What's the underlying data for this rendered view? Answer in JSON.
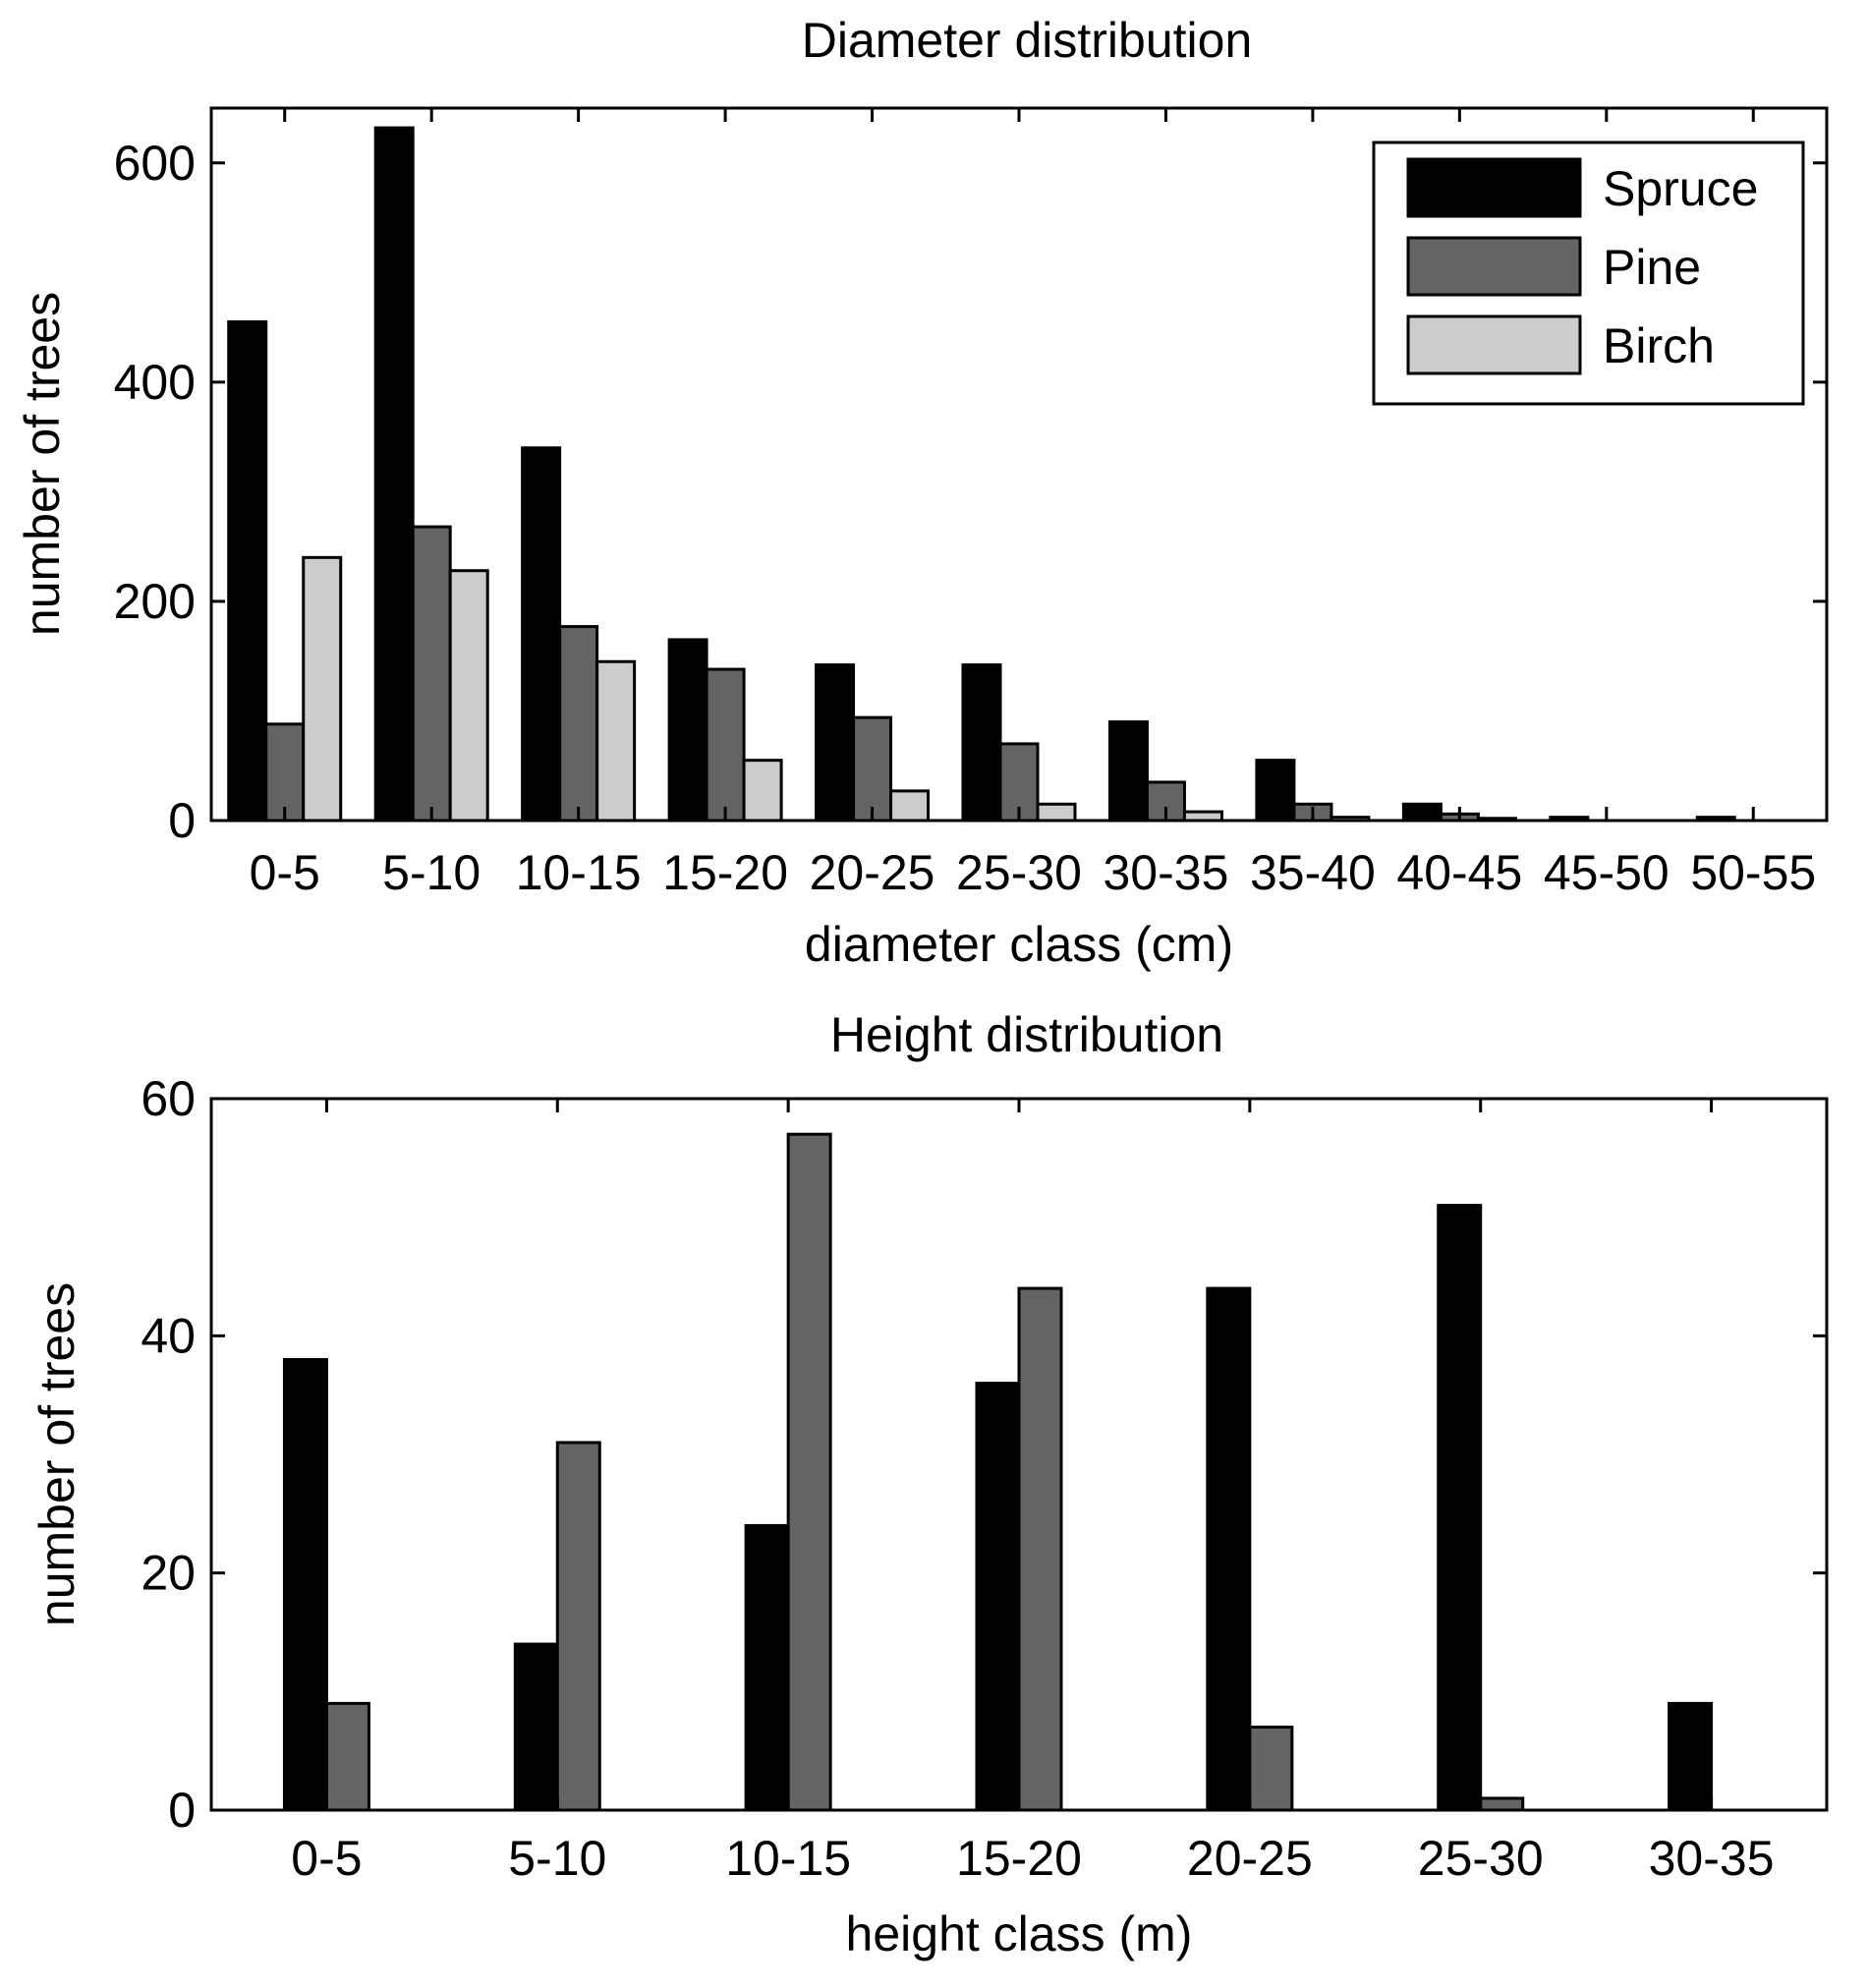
{
  "chart_data": [
    {
      "type": "bar",
      "title": "Diameter distribution",
      "xlabel": "diameter class (cm)",
      "ylabel": "number of trees",
      "categories": [
        "0-5",
        "5-10",
        "10-15",
        "15-20",
        "20-25",
        "25-30",
        "30-35",
        "35-40",
        "40-45",
        "45-50",
        "50-55"
      ],
      "series": [
        {
          "name": "Spruce",
          "color": "#000000",
          "values": [
            455,
            632,
            340,
            165,
            142,
            142,
            90,
            55,
            15,
            3,
            3
          ]
        },
        {
          "name": "Pine",
          "color": "#646464",
          "values": [
            88,
            268,
            177,
            138,
            94,
            70,
            35,
            15,
            6,
            0,
            0
          ]
        },
        {
          "name": "Birch",
          "color": "#cccccc",
          "values": [
            240,
            228,
            145,
            55,
            27,
            15,
            8,
            3,
            2,
            0,
            0
          ]
        }
      ],
      "ylim": [
        0,
        650
      ],
      "yticks": [
        0,
        200,
        400,
        600
      ],
      "grid": false,
      "legend": "top-right"
    },
    {
      "type": "bar",
      "title": "Height distribution",
      "xlabel": "height class (m)",
      "ylabel": "number of trees",
      "categories": [
        "0-5",
        "5-10",
        "10-15",
        "15-20",
        "20-25",
        "25-30",
        "30-35"
      ],
      "series": [
        {
          "color": "#000000",
          "values": [
            38,
            14,
            24,
            36,
            44,
            51,
            9
          ]
        },
        {
          "color": "#646464",
          "values": [
            9,
            31,
            57,
            44,
            7,
            1,
            0
          ]
        }
      ],
      "ylim": [
        0,
        60
      ],
      "yticks": [
        0,
        20,
        40,
        60
      ],
      "grid": false,
      "legend": "none"
    }
  ]
}
